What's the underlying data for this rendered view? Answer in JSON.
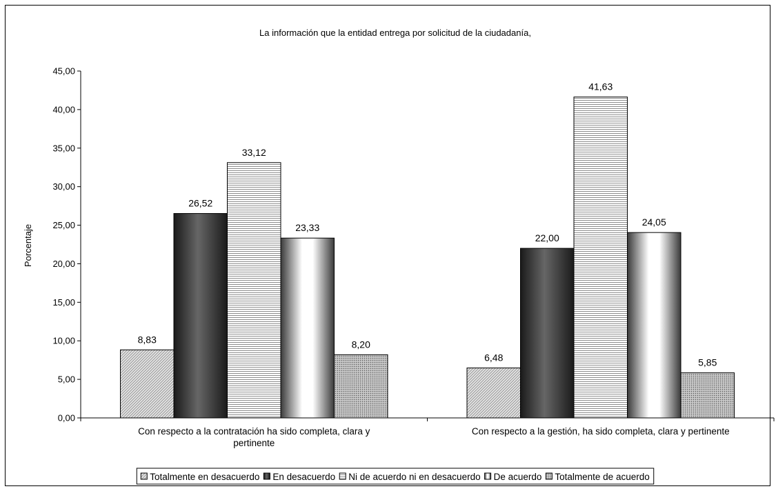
{
  "chart_data": {
    "type": "bar",
    "title": "La información que la entidad entrega por solicitud de la ciudadanía,",
    "xlabel": "",
    "ylabel": "Porcentaje",
    "ylim": [
      0,
      45
    ],
    "ytick_step": 5,
    "ytick_labels": [
      "0,00",
      "5,00",
      "10,00",
      "15,00",
      "20,00",
      "25,00",
      "30,00",
      "35,00",
      "40,00",
      "45,00"
    ],
    "grid": false,
    "legend_position": "bottom",
    "categories": [
      [
        "Con respecto a la contratación ha sido completa, clara y",
        "pertinente"
      ],
      [
        "Con respecto a la gestión, ha sido completa, clara y pertinente"
      ]
    ],
    "series": [
      {
        "name": "Totalmente en desacuerdo",
        "values": [
          8.83,
          6.48
        ],
        "labels": [
          "8,83",
          "6,48"
        ],
        "fill": "url(#pat-diag)"
      },
      {
        "name": "En desacuerdo",
        "values": [
          26.52,
          22.0
        ],
        "labels": [
          "26,52",
          "22,00"
        ],
        "fill": "url(#grad-dark)"
      },
      {
        "name": "Ni de acuerdo ni en desacuerdo",
        "values": [
          33.12,
          41.63
        ],
        "labels": [
          "33,12",
          "41,63"
        ],
        "fill": "url(#pat-hline)"
      },
      {
        "name": "De acuerdo",
        "values": [
          23.33,
          24.05
        ],
        "labels": [
          "23,33",
          "24,05"
        ],
        "fill": "url(#grad-light)"
      },
      {
        "name": "Totalmente de acuerdo",
        "values": [
          8.2,
          5.85
        ],
        "labels": [
          "8,20",
          "5,85"
        ],
        "fill": "url(#pat-dots)"
      }
    ]
  }
}
